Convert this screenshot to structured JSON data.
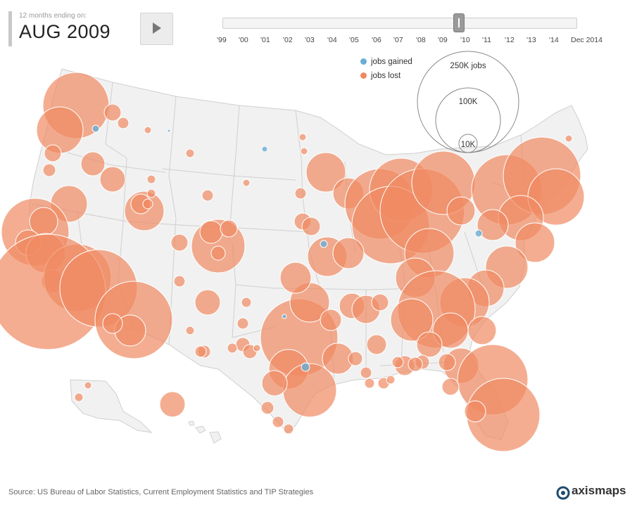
{
  "header": {
    "caption": "12 months ending on:",
    "date": "AUG 2009"
  },
  "controls": {
    "play_icon": "play-icon"
  },
  "timeline": {
    "ticks": [
      "'99",
      "'00",
      "'01",
      "'02",
      "'03",
      "'04",
      "'05",
      "'06",
      "'07",
      "'08",
      "'09",
      "'10",
      "'11",
      "'12",
      "'13",
      "'14",
      "Dec 2014"
    ],
    "position": "Aug 2009"
  },
  "legend": {
    "gained_label": "jobs gained",
    "lost_label": "jobs lost",
    "gained_color": "#6aaed6",
    "lost_color": "#ef8a62",
    "size_labels": [
      "250K jobs",
      "100K",
      "10K"
    ]
  },
  "footer": {
    "source": "Source: US Bureau of Labor Statistics, Current Employment Statistics and TIP Strategies",
    "logo_text": "axismaps",
    "logo_icon": "axismaps-logo-icon"
  }
}
